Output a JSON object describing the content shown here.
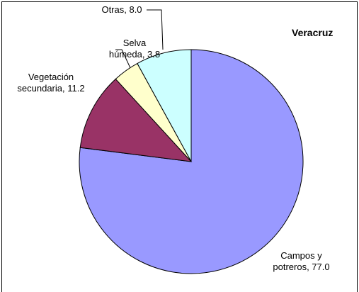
{
  "chart_data": {
    "type": "pie",
    "title": "Veracruz",
    "values": [
      77.0,
      11.2,
      3.8,
      8.0
    ],
    "value_labels": [
      "Campos y potreros, 77.0",
      "Vegetación secundaria, 11.2",
      "Selva húmeda, 3.8",
      "Otras, 8.0"
    ],
    "colors": [
      "#9999ff",
      "#993366",
      "#ffffcc",
      "#ccffff"
    ],
    "start_angle": 90,
    "direction": "clockwise"
  }
}
